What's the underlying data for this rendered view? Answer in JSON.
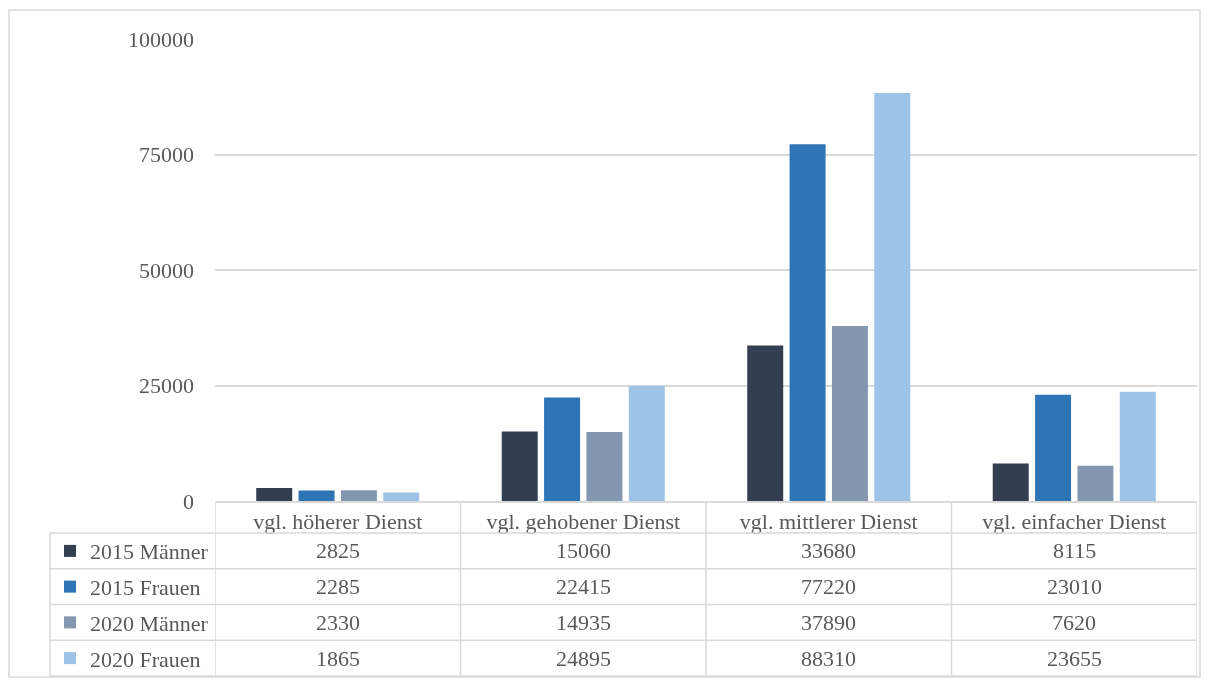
{
  "chart_data": {
    "type": "bar",
    "categories": [
      "vgl. höherer Dienst",
      "vgl. gehobener Dienst",
      "vgl. mittlerer Dienst",
      "vgl. einfacher Dienst"
    ],
    "series": [
      {
        "name": "2015 Männer",
        "color": "#333f50",
        "values": [
          2825,
          15060,
          33680,
          8115
        ]
      },
      {
        "name": "2015 Frauen",
        "color": "#2e75b6",
        "values": [
          2285,
          22415,
          77220,
          23010
        ]
      },
      {
        "name": "2020 Männer",
        "color": "#8497b0",
        "values": [
          2330,
          14935,
          37890,
          7620
        ]
      },
      {
        "name": "2020 Frauen",
        "color": "#9dc3e6",
        "values": [
          1865,
          24895,
          88310,
          23655
        ]
      }
    ],
    "ylim": [
      0,
      100000
    ],
    "yticks": [
      0,
      25000,
      50000,
      75000,
      100000
    ],
    "grid": "y",
    "legend": "bottom left",
    "data_labels": true
  }
}
